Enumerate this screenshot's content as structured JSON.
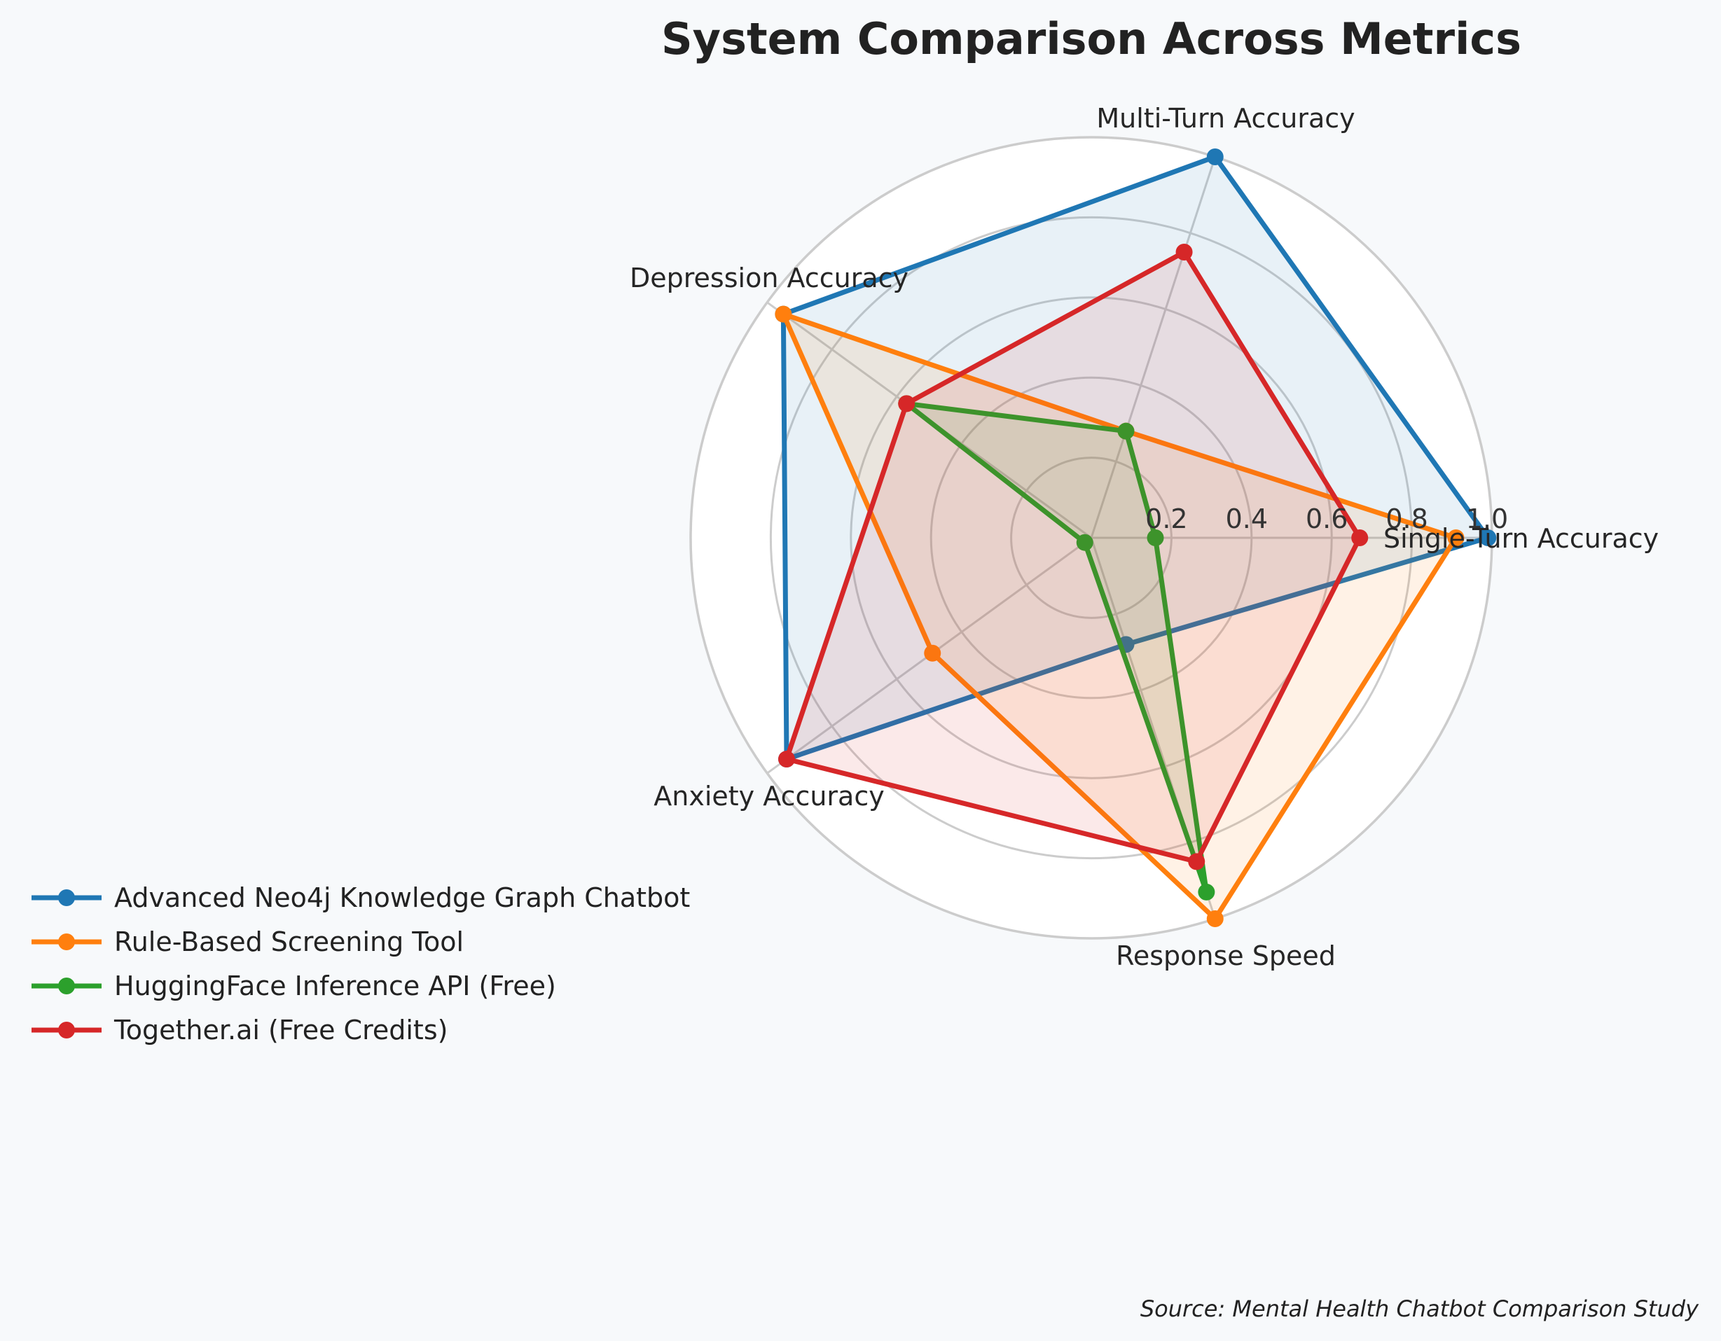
{
  "chart_data": {
    "type": "radar",
    "title": "System Comparison Across Metrics",
    "categories": [
      "Single-Turn Accuracy",
      "Multi-Turn Accuracy",
      "Depression Accuracy",
      "Anxiety Accuracy",
      "Response Speed"
    ],
    "rlim": [
      0,
      1.0
    ],
    "rticks": [
      "0.2",
      "0.4",
      "0.6",
      "0.8",
      "1.0"
    ],
    "rtick_values": [
      0.2,
      0.4,
      0.6,
      0.8,
      1.0
    ],
    "grid": true,
    "legend_position": "lower-left",
    "series": [
      {
        "name": "Advanced Neo4j Knowledge Graph Chatbot",
        "color": "#1f77b4",
        "values": [
          0.99,
          1.0,
          0.95,
          0.94,
          0.28
        ]
      },
      {
        "name": "Rule-Based Screening Tool",
        "color": "#ff7f0e",
        "values": [
          0.91,
          0.28,
          0.95,
          0.49,
          1.0
        ]
      },
      {
        "name": "HuggingFace Inference API (Free)",
        "color": "#2ca02c",
        "values": [
          0.16,
          0.28,
          0.57,
          0.02,
          0.93
        ]
      },
      {
        "name": "Together.ai  (Free Credits)",
        "color": "#d62728",
        "values": [
          0.67,
          0.75,
          0.57,
          0.94,
          0.85
        ]
      }
    ]
  },
  "source": "Source: Mental Health Chatbot Comparison Study"
}
